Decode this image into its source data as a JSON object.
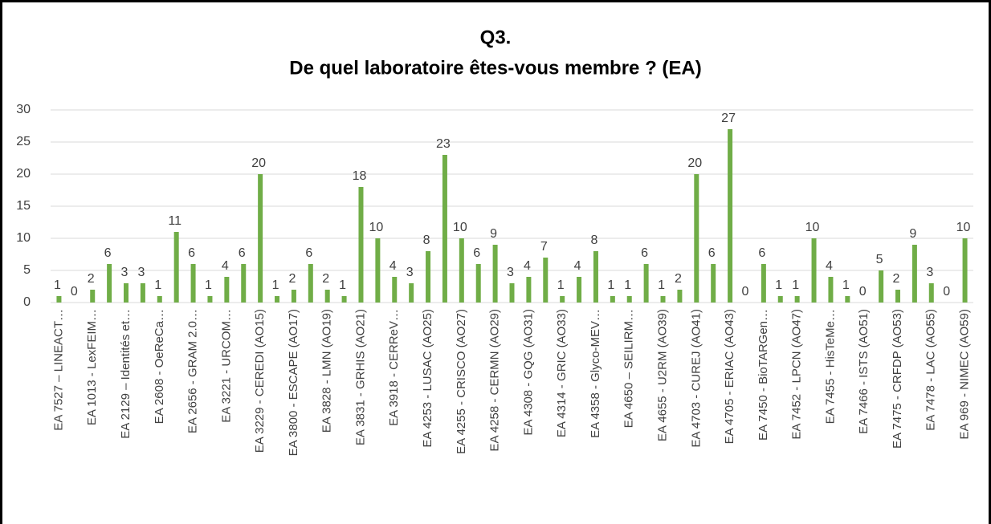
{
  "chart_data": {
    "type": "bar",
    "title": "Q3.",
    "subtitle": "De quel laboratoire êtes-vous membre ? (EA)",
    "categories": [
      "EA 7527 – LINEACT…",
      null,
      "EA 1013 - LexFEIM…",
      null,
      "EA 2129 – Identités et…",
      null,
      "EA 2608 - OeReCa…",
      null,
      "EA 2656 - GRAM 2.0…",
      null,
      "EA 3221 - URCOM…",
      null,
      "EA 3229 - CEREDI (AO15)",
      null,
      "EA 3800 - ESCAPE (AO17)",
      null,
      "EA 3828 - LMN (AO19)",
      null,
      "EA 3831 - GRHIS (AO21)",
      null,
      "EA 3918 - CERReV…",
      null,
      "EA 4253 - LUSAC (AO25)",
      null,
      "EA 4255 - CRISCO (AO27)",
      null,
      "EA 4258 - CERMN (AO29)",
      null,
      "EA 4308 - GQG (AO31)",
      null,
      "EA 4314 - GRIC (AO33)",
      null,
      "EA 4358 - Glyco-MEV…",
      null,
      "EA 4650 – SEILIRM…",
      null,
      "EA 4655 - U2RM (AO39)",
      null,
      "EA 4703 - CUREJ (AO41)",
      null,
      "EA 4705 - ERIAC (AO43)",
      null,
      "EA 7450 - BioTARGen…",
      null,
      "EA 7452 - LPCN (AO47)",
      null,
      "EA 7455 - HisTeMe…",
      null,
      "EA 7466 - ISTS (AO51)",
      null,
      "EA 7475 - CRFDP (AO53)",
      null,
      "EA 7478 - LAC (AO55)",
      null,
      "EA 969 - NIMEC (AO59)"
    ],
    "values": [
      1,
      0,
      2,
      6,
      3,
      3,
      1,
      11,
      6,
      1,
      4,
      6,
      20,
      1,
      2,
      6,
      2,
      1,
      18,
      10,
      4,
      3,
      8,
      23,
      10,
      6,
      9,
      3,
      4,
      7,
      1,
      4,
      8,
      1,
      1,
      6,
      1,
      2,
      20,
      6,
      27,
      0,
      6,
      1,
      1,
      10,
      4,
      1,
      0,
      5,
      2,
      9,
      3,
      0,
      10
    ],
    "color": "#70ad47",
    "ylim": [
      0,
      30
    ],
    "yticks": [
      0,
      5,
      10,
      15,
      20,
      25,
      30
    ],
    "grid": true
  }
}
